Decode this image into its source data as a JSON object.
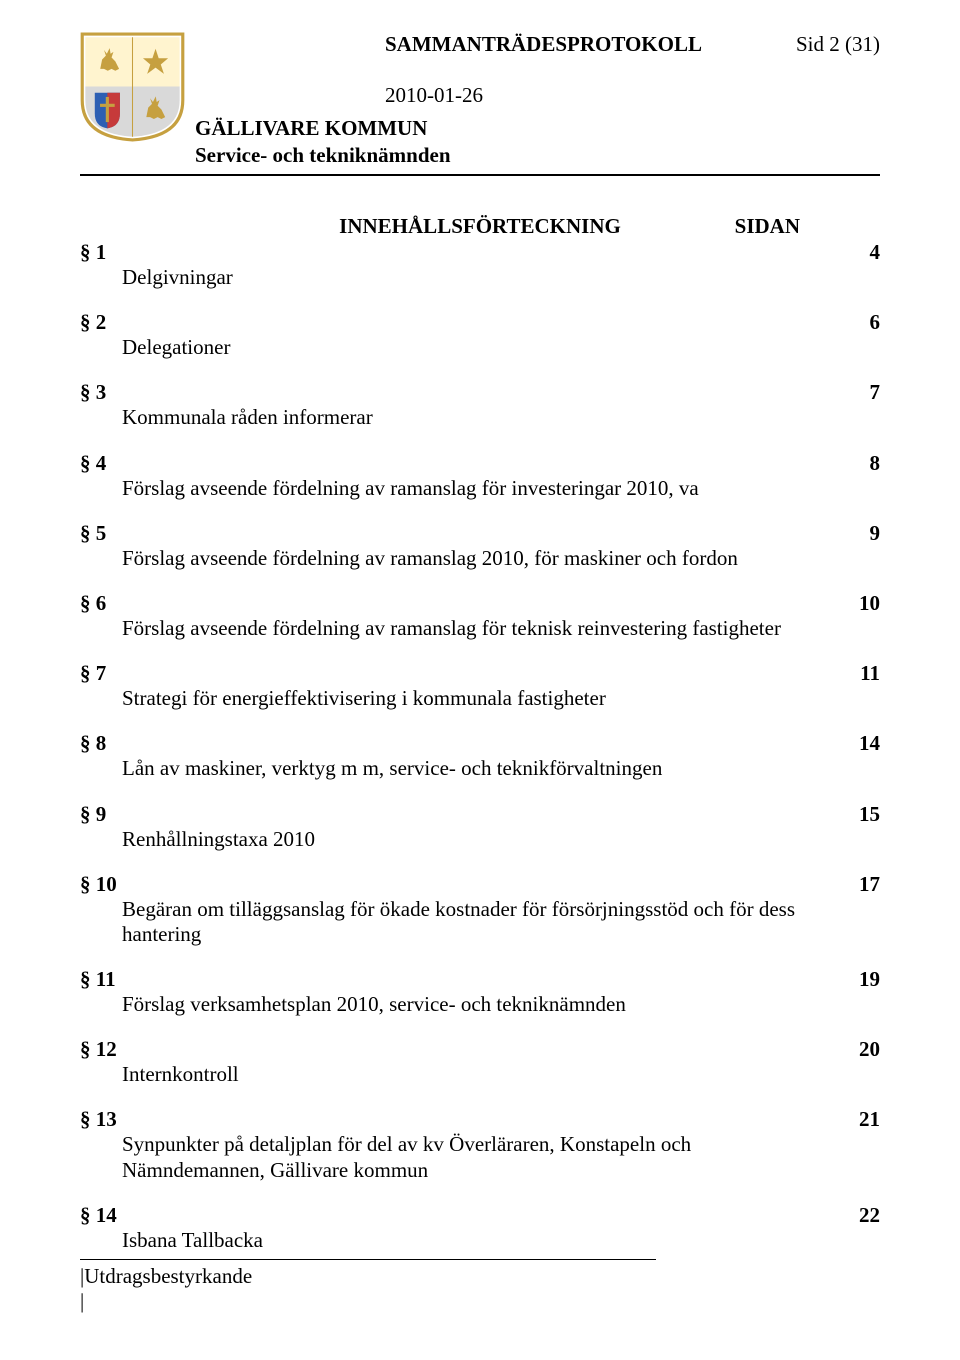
{
  "header": {
    "protocol_title": "SAMMANTRÄDESPROTOKOLL",
    "page_label": "Sid 2 (31)",
    "date": "2010-01-26",
    "org": "GÄLLIVARE KOMMUN",
    "dept": "Service- och tekniknämnden"
  },
  "toc": {
    "title": "INNEHÅLLSFÖRTECKNING",
    "sidan_label": "SIDAN",
    "entries": [
      {
        "section": "§ 1",
        "page": "4",
        "desc": "Delgivningar"
      },
      {
        "section": "§ 2",
        "page": "6",
        "desc": "Delegationer"
      },
      {
        "section": "§ 3",
        "page": "7",
        "desc": "Kommunala råden informerar"
      },
      {
        "section": "§ 4",
        "page": "8",
        "desc": "Förslag avseende fördelning av ramanslag för investeringar 2010, va"
      },
      {
        "section": "§ 5",
        "page": "9",
        "desc": "Förslag avseende fördelning av ramanslag 2010, för maskiner och fordon"
      },
      {
        "section": "§ 6",
        "page": "10",
        "desc": "Förslag avseende fördelning av ramanslag för teknisk reinvestering fastigheter"
      },
      {
        "section": "§ 7",
        "page": "11",
        "desc": "Strategi för energieffektivisering i kommunala fastigheter"
      },
      {
        "section": "§ 8",
        "page": "14",
        "desc": "Lån av maskiner, verktyg m m, service- och teknikförvaltningen"
      },
      {
        "section": "§ 9",
        "page": "15",
        "desc": "Renhållningstaxa 2010"
      },
      {
        "section": "§ 10",
        "page": "17",
        "desc": "Begäran om tilläggsanslag för ökade kostnader för försörjningsstöd och för dess hantering"
      },
      {
        "section": "§ 11",
        "page": "19",
        "desc": "Förslag verksamhetsplan 2010, service- och tekniknämnden"
      },
      {
        "section": "§ 12",
        "page": "20",
        "desc": "Internkontroll"
      },
      {
        "section": "§ 13",
        "page": "21",
        "desc": "Synpunkter på detaljplan för del av kv Överläraren, Konstapeln och Nämndemannen, Gällivare kommun"
      },
      {
        "section": "§ 14",
        "page": "22",
        "desc": "Isbana Tallbacka"
      }
    ]
  },
  "footer": {
    "label": "|Utdragsbestyrkande",
    "pipe": "|"
  },
  "crest": {
    "border_color": "#c6a040",
    "top_bg": "#fff4cf",
    "bottom_bg": "#d9d9d9",
    "star_color": "#c6a040",
    "shield_left": "#2d5fb3",
    "shield_right": "#c63a3a",
    "cross_color": "#c6a040",
    "deer_color": "#c6a040"
  }
}
